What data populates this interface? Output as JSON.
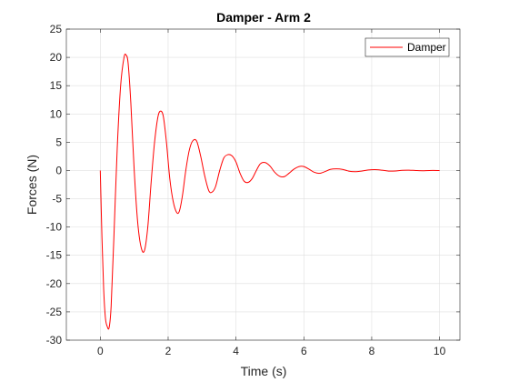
{
  "chart_data": {
    "type": "line",
    "title": "Damper - Arm 2",
    "xlabel": "Time (s)",
    "ylabel": "Forces (N)",
    "xlim": [
      -1,
      10.6
    ],
    "ylim": [
      -30,
      25
    ],
    "xticks": [
      0,
      2,
      4,
      6,
      8,
      10
    ],
    "yticks": [
      -30,
      -25,
      -20,
      -15,
      -10,
      -5,
      0,
      5,
      10,
      15,
      20,
      25
    ],
    "grid": true,
    "legend_position": "top-right",
    "series": [
      {
        "name": "Damper",
        "color": "#ff0000",
        "x": [
          0,
          0.05,
          0.1,
          0.15,
          0.2,
          0.26,
          0.32,
          0.4,
          0.5,
          0.6,
          0.7,
          0.76,
          0.82,
          0.9,
          1.0,
          1.1,
          1.2,
          1.3,
          1.4,
          1.5,
          1.6,
          1.7,
          1.78,
          1.86,
          1.95,
          2.05,
          2.15,
          2.25,
          2.33,
          2.42,
          2.52,
          2.62,
          2.72,
          2.84,
          2.96,
          3.08,
          3.2,
          3.3,
          3.4,
          3.52,
          3.64,
          3.76,
          3.88,
          4.0,
          4.12,
          4.24,
          4.36,
          4.48,
          4.6,
          4.72,
          4.86,
          5.0,
          5.14,
          5.28,
          5.42,
          5.56,
          5.7,
          5.86,
          6.0,
          6.16,
          6.3,
          6.46,
          6.62,
          6.78,
          6.96,
          7.14,
          7.32,
          7.5,
          7.7,
          7.9,
          8.1,
          8.3,
          8.5,
          8.7,
          8.9,
          9.1,
          9.3,
          9.5,
          9.7,
          10.0
        ],
        "y": [
          0,
          -12,
          -21,
          -26,
          -27.5,
          -27.8,
          -24,
          -12,
          4,
          15,
          20,
          20.4,
          19,
          12,
          0,
          -9,
          -13.5,
          -14.2,
          -10,
          -2,
          5,
          9.5,
          10.5,
          9.5,
          5,
          -1.5,
          -5.5,
          -7.4,
          -7.2,
          -4.5,
          0,
          3.5,
          5.2,
          5.2,
          2.5,
          -1,
          -3.6,
          -3.8,
          -2.8,
          0,
          2.2,
          2.8,
          2.6,
          1.5,
          -0.5,
          -1.9,
          -2.1,
          -1.4,
          0,
          1.2,
          1.4,
          0.8,
          -0.3,
          -1,
          -1.1,
          -0.5,
          0.2,
          0.7,
          0.7,
          0.2,
          -0.3,
          -0.5,
          -0.2,
          0.2,
          0.3,
          0.2,
          -0.1,
          -0.2,
          -0.1,
          0.1,
          0.15,
          0.05,
          -0.1,
          -0.08,
          0.04,
          0.06,
          0.0,
          -0.04,
          0.0,
          0.0
        ]
      }
    ]
  }
}
